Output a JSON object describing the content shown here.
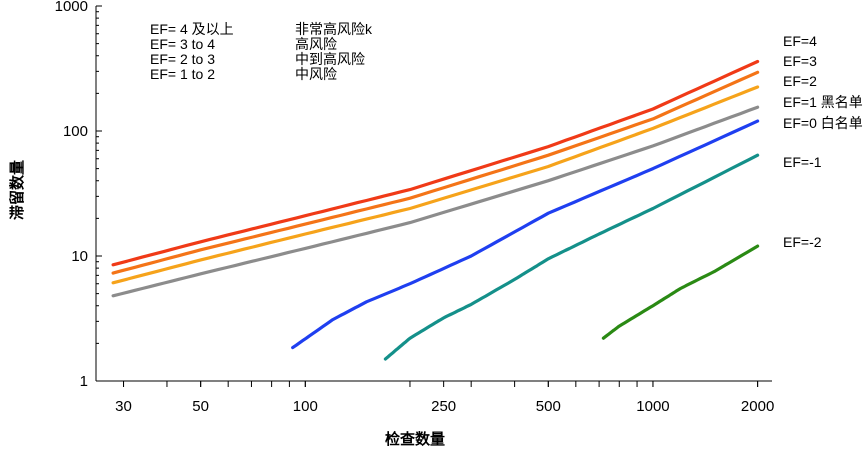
{
  "chart_data": {
    "type": "line",
    "xlabel": "检查数量",
    "ylabel": "滞留数量",
    "xscale": "log",
    "yscale": "log",
    "xlim": [
      25,
      2200
    ],
    "ylim": [
      1,
      1000
    ],
    "x_ticks": [
      30,
      50,
      100,
      250,
      500,
      1000,
      2000
    ],
    "y_ticks": [
      1,
      10,
      100,
      1000
    ],
    "legend": [
      {
        "ef": "EF= 4 及以上",
        "risk": "非常高风险k"
      },
      {
        "ef": "EF= 3 to 4",
        "risk": "高风险"
      },
      {
        "ef": "EF= 2 to 3",
        "risk": "中到高风险"
      },
      {
        "ef": "EF=  1 to 2",
        "risk": "中风险"
      }
    ],
    "series": [
      {
        "name": "EF=4",
        "color": "#f03a17",
        "x": [
          28,
          50,
          100,
          200,
          500,
          1000,
          2000
        ],
        "y": [
          8.5,
          13,
          21,
          34,
          75,
          150,
          360
        ]
      },
      {
        "name": "EF=3",
        "color": "#f47417",
        "x": [
          28,
          50,
          100,
          200,
          500,
          1000,
          2000
        ],
        "y": [
          7.3,
          11.2,
          18,
          29,
          64,
          125,
          295
        ]
      },
      {
        "name": "EF=2",
        "color": "#f6a31b",
        "x": [
          28,
          50,
          100,
          200,
          500,
          1000,
          2000
        ],
        "y": [
          6.1,
          9.3,
          15,
          24,
          52,
          105,
          225
        ]
      },
      {
        "name": "EF=1 黑名单",
        "color": "#8c8c8c",
        "x": [
          28,
          50,
          100,
          200,
          500,
          1000,
          2000
        ],
        "y": [
          4.8,
          7.2,
          11.5,
          18.5,
          40,
          76,
          155
        ]
      },
      {
        "name": "EF=0 白名单",
        "color": "#1f3ff0",
        "x": [
          92,
          120,
          150,
          200,
          300,
          500,
          1000,
          2000
        ],
        "y": [
          1.85,
          3.1,
          4.3,
          6,
          10,
          22,
          50,
          120
        ]
      },
      {
        "name": "EF=-1",
        "color": "#14908a",
        "x": [
          170,
          200,
          250,
          300,
          400,
          500,
          700,
          1000,
          2000
        ],
        "y": [
          1.5,
          2.2,
          3.2,
          4.1,
          6.5,
          9.5,
          15,
          24,
          64
        ]
      },
      {
        "name": "EF=-2",
        "color": "#2a8a14",
        "x": [
          720,
          800,
          1000,
          1200,
          1500,
          2000
        ],
        "y": [
          2.2,
          2.75,
          4,
          5.5,
          7.5,
          12
        ]
      }
    ]
  }
}
